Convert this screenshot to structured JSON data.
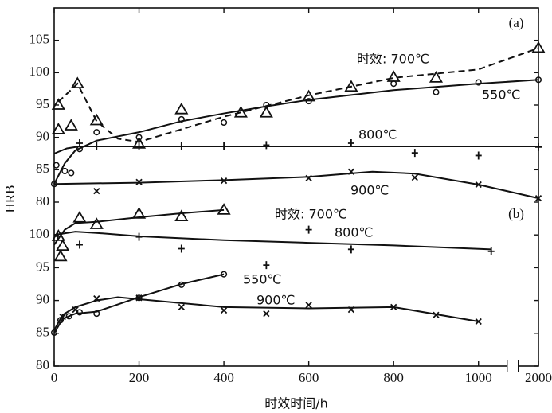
{
  "chart_data": [
    {
      "type": "line",
      "panel_label": "(a)",
      "ylabel": "HRB",
      "xlim": [
        0,
        2000
      ],
      "xbreak": [
        1060,
        1960
      ],
      "ylim": [
        80,
        110
      ],
      "yticks": [
        80,
        85,
        90,
        95,
        100,
        105
      ],
      "series": [
        {
          "name": "时效: 700℃",
          "marker": "triangle",
          "line_style": "dashed",
          "color": "#111111",
          "x": [
            10,
            10,
            40,
            55,
            100,
            200,
            300,
            440,
            500,
            600,
            700,
            800,
            900,
            2000
          ],
          "values": [
            95,
            91.2,
            91.8,
            98.3,
            92.6,
            89,
            94.3,
            93.8,
            93.8,
            96.3,
            97.8,
            99.3,
            99.2,
            103.8
          ],
          "fit_x": [
            10,
            55,
            100,
            150,
            200,
            400,
            600,
            800,
            1000,
            2000
          ],
          "fit_values": [
            95.5,
            98.3,
            92.5,
            89.8,
            89.3,
            93.2,
            96.5,
            99.2,
            100.5,
            103.8
          ]
        },
        {
          "name": "550℃",
          "marker": "circle",
          "line_style": "solid",
          "color": "#111111",
          "x": [
            0,
            5,
            25,
            40,
            60,
            100,
            200,
            300,
            400,
            500,
            600,
            800,
            900,
            1000,
            2000
          ],
          "values": [
            82.8,
            85.7,
            84.8,
            84.5,
            88.2,
            90.8,
            90,
            92.8,
            92.3,
            95,
            95.6,
            98.3,
            97,
            98.5,
            98.9
          ],
          "fit_x": [
            0,
            25,
            50,
            100,
            200,
            300,
            400,
            500,
            600,
            800,
            1000,
            2000
          ],
          "fit_values": [
            82.8,
            86,
            88,
            89.5,
            90.8,
            92.5,
            93.7,
            94.8,
            95.8,
            97.3,
            98.3,
            98.9
          ]
        },
        {
          "name": "800℃",
          "marker": "plus",
          "line_style": "solid",
          "color": "#111111",
          "x": [
            60,
            100,
            200,
            300,
            400,
            500,
            700,
            850,
            1000,
            2000
          ],
          "values": [
            89.1,
            88.6,
            88.6,
            88.6,
            88.6,
            88.8,
            89.1,
            87.6,
            87.2,
            88.5
          ],
          "fit_x": [
            0,
            30,
            60,
            100,
            2000
          ],
          "fit_values": [
            87.5,
            88.3,
            88.6,
            88.6,
            88.6
          ]
        },
        {
          "name": "900℃",
          "marker": "cross",
          "line_style": "solid",
          "color": "#111111",
          "x": [
            100,
            200,
            400,
            600,
            700,
            850,
            1000,
            2000
          ],
          "values": [
            81.7,
            83.1,
            83.3,
            83.7,
            84.7,
            83.8,
            82.7,
            80.6
          ],
          "fit_x": [
            0,
            200,
            400,
            600,
            750,
            850,
            1000,
            2000
          ],
          "fit_values": [
            82.8,
            83,
            83.4,
            83.9,
            84.7,
            84.4,
            82.7,
            80.6
          ]
        }
      ]
    },
    {
      "type": "line",
      "panel_label": "(b)",
      "xlabel": "时效时间/h",
      "xlim": [
        0,
        2000
      ],
      "xbreak": [
        1060,
        1960
      ],
      "xticks": [
        0,
        200,
        400,
        600,
        800,
        1000,
        2000
      ],
      "ylim": [
        80,
        105
      ],
      "yticks": [
        80,
        85,
        90,
        95,
        100
      ],
      "series": [
        {
          "name": "时效: 700℃",
          "marker": "triangle",
          "line_style": "solid",
          "color": "#111111",
          "x": [
            15,
            20,
            10,
            60,
            100,
            200,
            300,
            400
          ],
          "values": [
            96.7,
            98.3,
            99.8,
            102.6,
            101.6,
            103.2,
            102.8,
            103.8
          ],
          "fit_x": [
            0,
            25,
            50,
            100,
            200,
            300,
            400
          ],
          "fit_values": [
            98.5,
            100.8,
            101.8,
            102,
            102.7,
            103.3,
            103.8
          ]
        },
        {
          "name": "800℃",
          "marker": "plus",
          "line_style": "solid",
          "color": "#111111",
          "x": [
            8,
            60,
            200,
            300,
            500,
            600,
            700,
            1030
          ],
          "values": [
            99.8,
            98.5,
            99.7,
            97.9,
            95.4,
            100.8,
            97.8,
            97.5
          ],
          "fit_x": [
            0,
            50,
            100,
            200,
            400,
            600,
            800,
            1030
          ],
          "fit_values": [
            100,
            100.5,
            100.3,
            99.8,
            99.2,
            98.8,
            98.4,
            97.8
          ]
        },
        {
          "name": "550℃",
          "marker": "circle",
          "line_style": "solid",
          "color": "#111111",
          "x": [
            0,
            15,
            35,
            60,
            100,
            200,
            300,
            400
          ],
          "values": [
            85.1,
            87,
            87.6,
            88.2,
            88,
            90.4,
            92.4,
            94
          ],
          "fit_x": [
            0,
            20,
            50,
            100,
            200,
            300,
            400
          ],
          "fit_values": [
            85,
            87.2,
            88,
            88.3,
            90.5,
            92.5,
            94
          ]
        },
        {
          "name": "900℃",
          "marker": "cross",
          "line_style": "solid",
          "color": "#111111",
          "x": [
            20,
            50,
            100,
            200,
            300,
            400,
            500,
            600,
            700,
            800,
            900,
            1000
          ],
          "values": [
            87.5,
            88.6,
            90.3,
            90.4,
            89,
            88.5,
            88,
            89.3,
            88.6,
            89,
            87.8,
            86.8
          ],
          "fit_x": [
            0,
            20,
            50,
            100,
            150,
            200,
            400,
            600,
            800,
            1000
          ],
          "fit_values": [
            85.5,
            87.8,
            89,
            90,
            90.5,
            90.2,
            89,
            88.8,
            89,
            86.8
          ]
        }
      ]
    }
  ]
}
